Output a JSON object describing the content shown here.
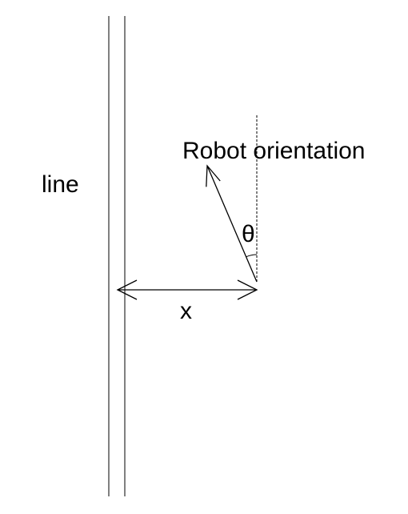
{
  "labels": {
    "line": "line",
    "robot_orientation": "Robot orientation",
    "theta": "θ",
    "x": "x"
  },
  "colors": {
    "stroke": "#000000",
    "background": "#ffffff"
  },
  "icons": {
    "orientation_arrow": "arrow-up-left-icon",
    "distance_arrow": "double-arrow-horizontal-icon"
  }
}
